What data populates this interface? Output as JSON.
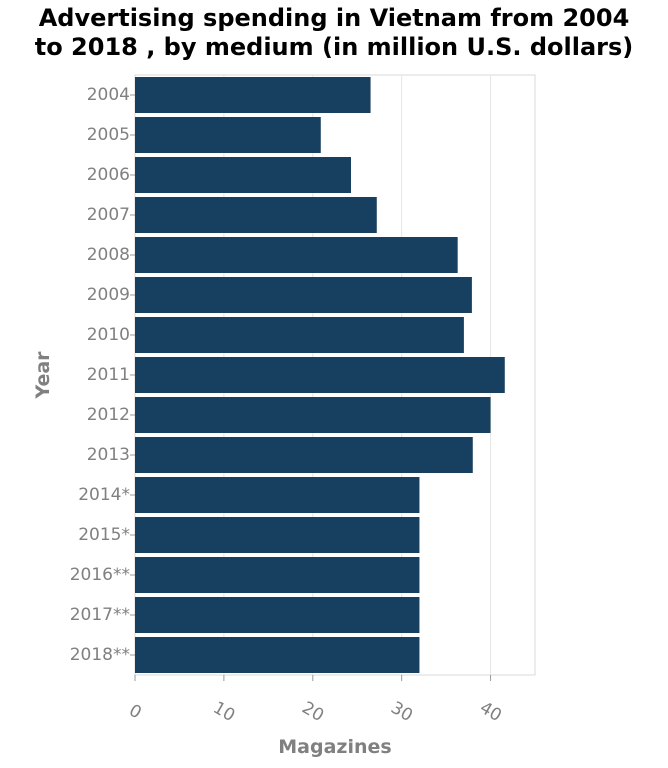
{
  "chart_data": {
    "type": "bar",
    "orientation": "horizontal",
    "title_lines": [
      "Advertising spending in Vietnam from 2004",
      "to 2018 , by medium (in million U.S. dollars)"
    ],
    "xlabel": "Magazines",
    "ylabel": "Year",
    "xlim": [
      0,
      45
    ],
    "xticks": [
      0,
      10,
      20,
      30,
      40
    ],
    "grid": "vertical",
    "legend": "none",
    "bar_color": "#173f5f",
    "categories": [
      "2004",
      "2005",
      "2006",
      "2007",
      "2008",
      "2009",
      "2010",
      "2011",
      "2012",
      "2013",
      "2014*",
      "2015*",
      "2016**",
      "2017**",
      "2018**"
    ],
    "values": [
      26.5,
      20.9,
      24.3,
      27.2,
      36.3,
      37.9,
      37.0,
      41.6,
      40.0,
      38.0,
      32.0,
      32.0,
      32.0,
      32.0,
      32.0
    ]
  }
}
